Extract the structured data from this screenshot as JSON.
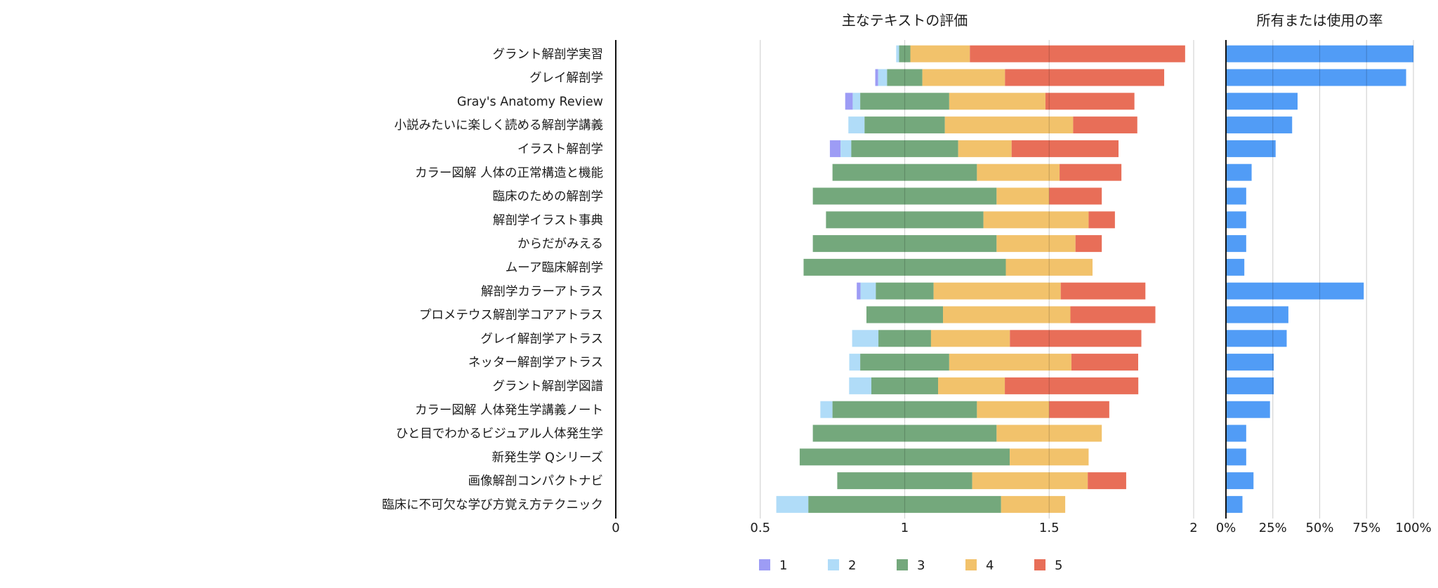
{
  "chart_data": [
    {
      "type": "bar",
      "orientation": "horizontal",
      "stacked": true,
      "diverging": true,
      "diverging_center": 1,
      "title": "主なテキストの評価",
      "xlabel": "",
      "ylabel": "",
      "xlim": [
        0,
        2
      ],
      "xticks": [
        0,
        0.5,
        1,
        1.5,
        2
      ],
      "xtick_labels": [
        "0",
        "0.5",
        "1",
        "1.5",
        "2"
      ],
      "grid": true,
      "categories": [
        "グラント解剖学実習",
        "グレイ解剖学",
        "Gray's Anatomy Review",
        "小説みたいに楽しく読める解剖学講義",
        "イラスト解剖学",
        "カラー図解 人体の正常構造と機能",
        "臨床のための解剖学",
        "解剖学イラスト事典",
        "からだがみえる",
        "ムーア臨床解剖学",
        "解剖学カラーアトラス",
        "プロメテウス解剖学コアアトラス",
        "グレイ解剖学アトラス",
        "ネッター解剖学アトラス",
        "グラント解剖学図譜",
        "カラー図解 人体発生学講義ノート",
        "ひと目でわかるビジュアル人体発生学",
        "新発生学 Qシリーズ",
        "画像解剖コンパクトナビ",
        "臨床に不可欠な学び方覚え方テクニック"
      ],
      "series": [
        {
          "name": "1",
          "color": "#9d9cf5",
          "values": [
            0,
            0.01,
            0.026,
            0,
            0.037,
            0,
            0,
            0,
            0,
            0,
            0.013,
            0,
            0,
            0,
            0,
            0,
            0,
            0,
            0,
            0
          ]
        },
        {
          "name": "2",
          "color": "#b0dcf8",
          "values": [
            0.01,
            0.031,
            0.026,
            0.056,
            0.037,
            0,
            0,
            0,
            0,
            0,
            0.053,
            0,
            0.091,
            0.038,
            0.077,
            0.042,
            0,
            0,
            0,
            0.111
          ]
        },
        {
          "name": "3",
          "color": "#74a87c",
          "values": [
            0.039,
            0.122,
            0.308,
            0.278,
            0.37,
            0.5,
            0.636,
            0.545,
            0.636,
            0.7,
            0.2,
            0.265,
            0.182,
            0.308,
            0.231,
            0.5,
            0.636,
            0.727,
            0.467,
            0.667
          ]
        },
        {
          "name": "4",
          "color": "#f2c26b",
          "values": [
            0.206,
            0.286,
            0.333,
            0.444,
            0.185,
            0.286,
            0.182,
            0.364,
            0.273,
            0.3,
            0.44,
            0.441,
            0.273,
            0.423,
            0.231,
            0.25,
            0.364,
            0.273,
            0.4,
            0.222
          ]
        },
        {
          "name": "5",
          "color": "#e86e58",
          "values": [
            0.745,
            0.551,
            0.308,
            0.222,
            0.37,
            0.214,
            0.182,
            0.091,
            0.091,
            0,
            0.293,
            0.294,
            0.455,
            0.231,
            0.462,
            0.208,
            0,
            0,
            0.133,
            0
          ]
        }
      ],
      "legend": {
        "position": "bottom",
        "entries": [
          "1",
          "2",
          "3",
          "4",
          "5"
        ]
      }
    },
    {
      "type": "bar",
      "orientation": "horizontal",
      "title": "所有または使用の率",
      "xlabel": "",
      "ylabel": "",
      "unit": "%",
      "xlim": [
        0,
        100
      ],
      "xticks": [
        0,
        25,
        50,
        75,
        100
      ],
      "xtick_labels": [
        "0%",
        "25%",
        "50%",
        "75%",
        "100%"
      ],
      "grid": true,
      "color": "#519cf6",
      "categories": [
        "グラント解剖学実習",
        "グレイ解剖学",
        "Gray's Anatomy Review",
        "小説みたいに楽しく読める解剖学講義",
        "イラスト解剖学",
        "カラー図解 人体の正常構造と機能",
        "臨床のための解剖学",
        "解剖学イラスト事典",
        "からだがみえる",
        "ムーア臨床解剖学",
        "解剖学カラーアトラス",
        "プロメテウス解剖学コアアトラス",
        "グレイ解剖学アトラス",
        "ネッター解剖学アトラス",
        "グラント解剖学図譜",
        "カラー図解 人体発生学講義ノート",
        "ひと目でわかるビジュアル人体発生学",
        "新発生学 Qシリーズ",
        "画像解剖コンパクトナビ",
        "臨床に不可欠な学び方覚え方テクニック"
      ],
      "values": [
        100,
        96.1,
        38.2,
        35.3,
        26.5,
        13.7,
        10.8,
        10.8,
        10.8,
        9.8,
        73.5,
        33.3,
        32.4,
        25.5,
        25.5,
        23.5,
        10.8,
        10.8,
        14.7,
        8.8
      ]
    }
  ]
}
